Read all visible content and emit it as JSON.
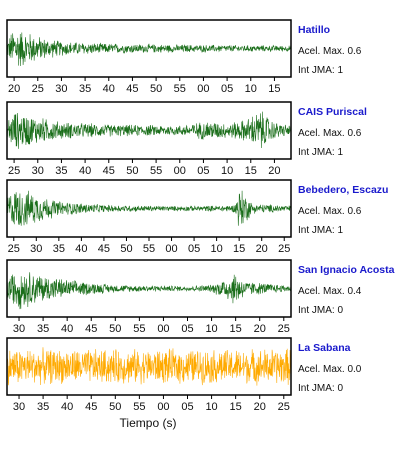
{
  "chart_data": {
    "type": "line",
    "xlabel": "Tiempo (s)",
    "panels": [
      {
        "station": "Hatillo",
        "acel_label": "Acel. Max. 0.6",
        "int_label": "Int JMA: 1",
        "color": "#1a6e1a",
        "ticks": [
          "20",
          "25",
          "30",
          "35",
          "40",
          "45",
          "50",
          "55",
          "00",
          "05",
          "10",
          "15"
        ],
        "xlim": [
          18.5,
          78.5
        ],
        "tick_start": 20,
        "envelope": [
          [
            18.5,
            0.3
          ],
          [
            20,
            0.9
          ],
          [
            22,
            0.75
          ],
          [
            26,
            0.45
          ],
          [
            30,
            0.3
          ],
          [
            40,
            0.2
          ],
          [
            55,
            0.16
          ],
          [
            70,
            0.13
          ],
          [
            78.5,
            0.12
          ]
        ]
      },
      {
        "station": "CAIS Puriscal",
        "acel_label": "Acel. Max. 0.6",
        "int_label": "Int JMA: 1",
        "color": "#1a6e1a",
        "ticks": [
          "25",
          "30",
          "35",
          "40",
          "45",
          "50",
          "55",
          "00",
          "05",
          "10",
          "15",
          "20"
        ],
        "xlim": [
          23.5,
          83.5
        ],
        "tick_start": 25,
        "envelope": [
          [
            23.5,
            0.4
          ],
          [
            25,
            0.8
          ],
          [
            30,
            0.55
          ],
          [
            35,
            0.35
          ],
          [
            45,
            0.25
          ],
          [
            60,
            0.2
          ],
          [
            66,
            0.4
          ],
          [
            70,
            0.3
          ],
          [
            74,
            0.45
          ],
          [
            77,
            0.85
          ],
          [
            80,
            0.35
          ],
          [
            83.5,
            0.2
          ]
        ]
      },
      {
        "station": "Bebedero, Escazu",
        "acel_label": "Acel. Max. 0.6",
        "int_label": "Int JMA: 1",
        "color": "#1a6e1a",
        "ticks": [
          "25",
          "30",
          "35",
          "40",
          "45",
          "50",
          "55",
          "00",
          "05",
          "10",
          "15",
          "20",
          "25"
        ],
        "xlim": [
          23.5,
          86.5
        ],
        "tick_start": 25,
        "envelope": [
          [
            23.5,
            0.6
          ],
          [
            26,
            0.85
          ],
          [
            30,
            0.6
          ],
          [
            35,
            0.3
          ],
          [
            45,
            0.15
          ],
          [
            60,
            0.1
          ],
          [
            70,
            0.12
          ],
          [
            74,
            0.15
          ],
          [
            75,
            0.95
          ],
          [
            76,
            0.7
          ],
          [
            78,
            0.2
          ],
          [
            86.5,
            0.12
          ]
        ]
      },
      {
        "station": "San Ignacio Acosta",
        "acel_label": "Acel. Max. 0.4",
        "int_label": "Int JMA: 0",
        "color": "#1a6e1a",
        "ticks": [
          "30",
          "35",
          "40",
          "45",
          "50",
          "55",
          "00",
          "05",
          "10",
          "15",
          "20",
          "25"
        ],
        "xlim": [
          27.5,
          86.5
        ],
        "tick_start": 30,
        "envelope": [
          [
            27.5,
            0.5
          ],
          [
            30,
            0.85
          ],
          [
            34,
            0.6
          ],
          [
            40,
            0.35
          ],
          [
            50,
            0.15
          ],
          [
            65,
            0.1
          ],
          [
            70,
            0.15
          ],
          [
            73,
            0.45
          ],
          [
            75,
            0.7
          ],
          [
            77,
            0.3
          ],
          [
            86.5,
            0.12
          ]
        ]
      },
      {
        "station": "La Sabana",
        "acel_label": "Acel. Max. 0.0",
        "int_label": "Int JMA: 0",
        "color": "#ffaa00",
        "ticks": [
          "30",
          "35",
          "40",
          "45",
          "50",
          "55",
          "00",
          "05",
          "10",
          "15",
          "20",
          "25"
        ],
        "xlim": [
          27.5,
          86.5
        ],
        "tick_start": 30,
        "envelope": [
          [
            27.5,
            0.75
          ],
          [
            40,
            0.7
          ],
          [
            60,
            0.7
          ],
          [
            75,
            0.7
          ],
          [
            86.5,
            0.75
          ]
        ]
      }
    ]
  }
}
